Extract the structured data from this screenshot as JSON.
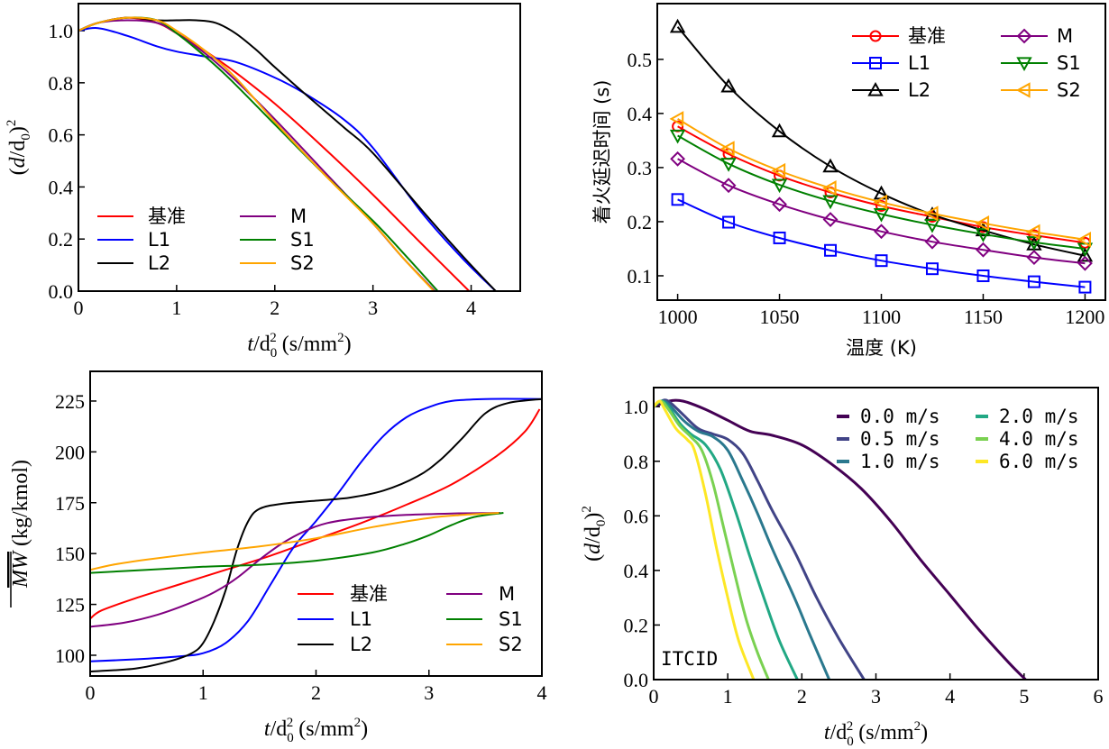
{
  "chart_data": [
    {
      "id": "tl",
      "type": "line",
      "title": "",
      "xlabel": "t/d0^2 (s/mm^2)",
      "ylabel": "(d/d0)^2",
      "xlim": [
        0,
        4.5
      ],
      "ylim": [
        0,
        1.104
      ],
      "xticks": [
        0,
        1,
        2,
        3,
        4
      ],
      "yticks": [
        0.0,
        0.2,
        0.4,
        0.6,
        0.8,
        1.0
      ],
      "ytick_labels": [
        "0.0",
        "0.2",
        "0.4",
        "0.6",
        "0.8",
        "1.0"
      ],
      "legend": {
        "placement": "lower-left",
        "columns": 2
      },
      "series": [
        {
          "name": "基准",
          "color": "#ff0000",
          "x": [
            0,
            0.2,
            0.5,
            0.8,
            1.0,
            1.3,
            1.6,
            2.0,
            2.5,
            3.0,
            3.5,
            3.98
          ],
          "y": [
            1.0,
            1.03,
            1.05,
            1.03,
            0.99,
            0.92,
            0.84,
            0.72,
            0.55,
            0.37,
            0.18,
            0.0
          ]
        },
        {
          "name": "L1",
          "color": "#0000ff",
          "x": [
            0,
            0.2,
            0.5,
            0.8,
            1.0,
            1.3,
            1.6,
            2.0,
            2.3,
            2.7,
            3.0,
            3.5,
            3.9,
            4.25
          ],
          "y": [
            1.0,
            1.01,
            0.98,
            0.94,
            0.92,
            0.9,
            0.88,
            0.82,
            0.76,
            0.66,
            0.55,
            0.3,
            0.13,
            0.0
          ]
        },
        {
          "name": "L2",
          "color": "#000000",
          "x": [
            0,
            0.2,
            0.5,
            0.8,
            1.0,
            1.2,
            1.4,
            1.6,
            1.8,
            2.0,
            2.3,
            2.7,
            3.0,
            3.5,
            3.9,
            4.25
          ],
          "y": [
            1.0,
            1.03,
            1.05,
            1.04,
            1.04,
            1.04,
            1.03,
            0.99,
            0.93,
            0.86,
            0.76,
            0.63,
            0.53,
            0.31,
            0.14,
            0.0
          ]
        },
        {
          "name": "M",
          "color": "#800080",
          "x": [
            0,
            0.2,
            0.5,
            0.8,
            1.0,
            1.3,
            1.6,
            2.0,
            2.5,
            3.0,
            3.3,
            3.63
          ],
          "y": [
            1.0,
            1.03,
            1.04,
            1.03,
            0.99,
            0.91,
            0.81,
            0.66,
            0.46,
            0.26,
            0.13,
            0.0
          ]
        },
        {
          "name": "S1",
          "color": "#008000",
          "x": [
            0,
            0.2,
            0.5,
            0.8,
            1.0,
            1.2,
            1.5,
            2.0,
            2.5,
            3.0,
            3.3,
            3.66
          ],
          "y": [
            1.0,
            1.03,
            1.05,
            1.04,
            0.99,
            0.93,
            0.83,
            0.64,
            0.45,
            0.27,
            0.15,
            0.0
          ]
        },
        {
          "name": "S2",
          "color": "#ffa500",
          "x": [
            0,
            0.2,
            0.5,
            0.8,
            1.0,
            1.3,
            1.6,
            2.0,
            2.5,
            3.0,
            3.3,
            3.62
          ],
          "y": [
            1.0,
            1.03,
            1.05,
            1.04,
            1.0,
            0.92,
            0.82,
            0.65,
            0.45,
            0.26,
            0.13,
            0.0
          ]
        }
      ]
    },
    {
      "id": "tr",
      "type": "line",
      "title": "",
      "xlabel": "温度 (K)",
      "ylabel": "着火延迟时间 (s)",
      "xlim": [
        990,
        1210
      ],
      "ylim": [
        0.055,
        0.603
      ],
      "xticks": [
        1000,
        1050,
        1100,
        1150,
        1200
      ],
      "yticks": [
        0.1,
        0.2,
        0.3,
        0.4,
        0.5
      ],
      "ytick_labels": [
        "0.1",
        "0.2",
        "0.3",
        "0.4",
        "0.5"
      ],
      "legend": {
        "placement": "top-right",
        "columns": 2
      },
      "x": [
        1000,
        1025,
        1050,
        1075,
        1100,
        1125,
        1150,
        1175,
        1200
      ],
      "series": [
        {
          "name": "基准",
          "color": "#ff0000",
          "marker": "circle",
          "values": [
            0.376,
            0.325,
            0.285,
            0.254,
            0.229,
            0.209,
            0.19,
            0.175,
            0.161
          ]
        },
        {
          "name": "L1",
          "color": "#0000ff",
          "marker": "square",
          "values": [
            0.241,
            0.199,
            0.17,
            0.147,
            0.128,
            0.113,
            0.1,
            0.089,
            0.079
          ]
        },
        {
          "name": "L2",
          "color": "#000000",
          "marker": "triangle-up",
          "values": [
            0.56,
            0.45,
            0.367,
            0.302,
            0.252,
            0.213,
            0.184,
            0.158,
            0.137
          ]
        },
        {
          "name": "M",
          "color": "#800080",
          "marker": "diamond",
          "values": [
            0.316,
            0.267,
            0.232,
            0.204,
            0.182,
            0.163,
            0.148,
            0.134,
            0.123
          ]
        },
        {
          "name": "S1",
          "color": "#008000",
          "marker": "triangle-down",
          "values": [
            0.359,
            0.307,
            0.268,
            0.238,
            0.214,
            0.194,
            0.177,
            0.162,
            0.15
          ]
        },
        {
          "name": "S2",
          "color": "#ffa500",
          "marker": "triangle-left",
          "values": [
            0.39,
            0.335,
            0.294,
            0.262,
            0.236,
            0.215,
            0.197,
            0.181,
            0.167
          ]
        }
      ]
    },
    {
      "id": "bl",
      "type": "line",
      "title": "",
      "xlabel": "t/d0^2 (s/mm^2)",
      "ylabel": "MW (kg/kmol)",
      "xlim": [
        0,
        4
      ],
      "ylim": [
        89.8,
        239.6
      ],
      "xticks": [
        0,
        1,
        2,
        3,
        4
      ],
      "yticks": [
        100,
        125,
        150,
        175,
        200,
        225
      ],
      "ytick_labels": [
        "100",
        "125",
        "150",
        "175",
        "200",
        "225"
      ],
      "legend": {
        "placement": "lower-right",
        "columns": 2
      },
      "series": [
        {
          "name": "基准",
          "color": "#ff0000",
          "x": [
            0,
            0.1,
            0.4,
            0.8,
            1.2,
            1.6,
            2.0,
            2.4,
            2.8,
            3.2,
            3.6,
            3.85,
            3.98
          ],
          "y": [
            118,
            122,
            128,
            135,
            142,
            149,
            157,
            165,
            174,
            184,
            198,
            210,
            221
          ]
        },
        {
          "name": "L1",
          "color": "#0000ff",
          "x": [
            0,
            0.4,
            0.8,
            1.0,
            1.2,
            1.4,
            1.6,
            1.8,
            2.0,
            2.2,
            2.4,
            2.6,
            2.8,
            3.0,
            3.2,
            3.5,
            4.0
          ],
          "y": [
            97,
            98,
            99.5,
            101,
            106,
            117,
            135,
            153,
            166,
            180,
            195,
            208,
            217,
            222,
            225,
            226,
            226
          ]
        },
        {
          "name": "L2",
          "color": "#000000",
          "x": [
            0,
            0.4,
            0.7,
            0.9,
            1.0,
            1.1,
            1.2,
            1.3,
            1.4,
            1.5,
            1.7,
            2.0,
            2.3,
            2.6,
            2.9,
            3.1,
            3.3,
            3.5,
            3.7,
            4.0
          ],
          "y": [
            92,
            93.5,
            97,
            101,
            106,
            117,
            132,
            152,
            166,
            172,
            174.5,
            176,
            177.5,
            181,
            188,
            196,
            207,
            219,
            224,
            226
          ]
        },
        {
          "name": "M",
          "color": "#800080",
          "x": [
            0,
            0.3,
            0.6,
            0.9,
            1.1,
            1.3,
            1.5,
            1.7,
            1.9,
            2.1,
            2.4,
            2.8,
            3.2,
            3.63
          ],
          "y": [
            114,
            116,
            120,
            126,
            131,
            138,
            147,
            155,
            161,
            165,
            167.5,
            169,
            169.7,
            170
          ]
        },
        {
          "name": "S1",
          "color": "#008000",
          "x": [
            0,
            0.5,
            1.0,
            1.5,
            2.0,
            2.5,
            2.8,
            3.0,
            3.2,
            3.4,
            3.66
          ],
          "y": [
            140.5,
            142,
            143.5,
            144.5,
            146.5,
            150.5,
            155,
            159,
            164,
            168,
            170
          ]
        },
        {
          "name": "S2",
          "color": "#ffa500",
          "x": [
            0,
            0.2,
            0.5,
            1.0,
            1.5,
            2.0,
            2.5,
            3.0,
            3.3,
            3.62
          ],
          "y": [
            142,
            144.5,
            147,
            150.5,
            153.5,
            157.5,
            163,
            167.5,
            169,
            170
          ]
        }
      ]
    },
    {
      "id": "br",
      "type": "line",
      "title": "",
      "xlabel": "t/d0^2 (s/mm^2)",
      "ylabel": "(d/d0)^2",
      "xlim": [
        0,
        6
      ],
      "ylim": [
        0,
        1.07
      ],
      "xticks": [
        0,
        1,
        2,
        3,
        4,
        5,
        6
      ],
      "yticks": [
        0.0,
        0.2,
        0.4,
        0.6,
        0.8,
        1.0
      ],
      "ytick_labels": [
        "0.0",
        "0.2",
        "0.4",
        "0.6",
        "0.8",
        "1.0"
      ],
      "legend": {
        "placement": "top-right",
        "columns": 2
      },
      "annotation": "ITCID",
      "series": [
        {
          "name": "0.0 m/s",
          "color": "#440154",
          "x": [
            0,
            0.2,
            0.4,
            0.7,
            1.0,
            1.3,
            1.6,
            2.0,
            2.4,
            2.8,
            3.2,
            3.6,
            4.0,
            4.4,
            4.8,
            5.02
          ],
          "y": [
            1.0,
            1.02,
            1.02,
            0.99,
            0.95,
            0.91,
            0.895,
            0.86,
            0.79,
            0.7,
            0.58,
            0.44,
            0.31,
            0.18,
            0.06,
            0.0
          ]
        },
        {
          "name": "0.5 m/s",
          "color": "#414487",
          "x": [
            0,
            0.1,
            0.2,
            0.4,
            0.6,
            0.8,
            1.0,
            1.2,
            1.4,
            1.6,
            1.9,
            2.2,
            2.5,
            2.84
          ],
          "y": [
            1.0,
            1.02,
            1.02,
            0.97,
            0.92,
            0.9,
            0.88,
            0.83,
            0.73,
            0.62,
            0.47,
            0.3,
            0.15,
            0.0
          ]
        },
        {
          "name": "1.0 m/s",
          "color": "#2a788e",
          "x": [
            0,
            0.1,
            0.2,
            0.4,
            0.6,
            0.8,
            1.0,
            1.2,
            1.4,
            1.6,
            1.9,
            2.1,
            2.37
          ],
          "y": [
            1.0,
            1.02,
            1.01,
            0.95,
            0.91,
            0.89,
            0.84,
            0.73,
            0.61,
            0.48,
            0.3,
            0.17,
            0.0
          ]
        },
        {
          "name": "2.0 m/s",
          "color": "#22a884",
          "x": [
            0,
            0.1,
            0.2,
            0.35,
            0.5,
            0.7,
            0.9,
            1.1,
            1.3,
            1.5,
            1.7,
            1.94
          ],
          "y": [
            1.0,
            1.02,
            1.0,
            0.94,
            0.9,
            0.86,
            0.77,
            0.62,
            0.45,
            0.29,
            0.14,
            0.0
          ]
        },
        {
          "name": "4.0 m/s",
          "color": "#7ad151",
          "x": [
            0,
            0.1,
            0.2,
            0.35,
            0.5,
            0.65,
            0.8,
            0.95,
            1.1,
            1.25,
            1.4,
            1.55
          ],
          "y": [
            1.0,
            1.02,
            0.99,
            0.93,
            0.89,
            0.84,
            0.72,
            0.55,
            0.38,
            0.22,
            0.1,
            0.0
          ]
        },
        {
          "name": "6.0 m/s",
          "color": "#fde725",
          "x": [
            0,
            0.08,
            0.15,
            0.3,
            0.45,
            0.55,
            0.7,
            0.85,
            1.0,
            1.15,
            1.35
          ],
          "y": [
            1.0,
            1.02,
            0.99,
            0.92,
            0.88,
            0.84,
            0.68,
            0.48,
            0.3,
            0.14,
            0.0
          ]
        }
      ]
    }
  ]
}
